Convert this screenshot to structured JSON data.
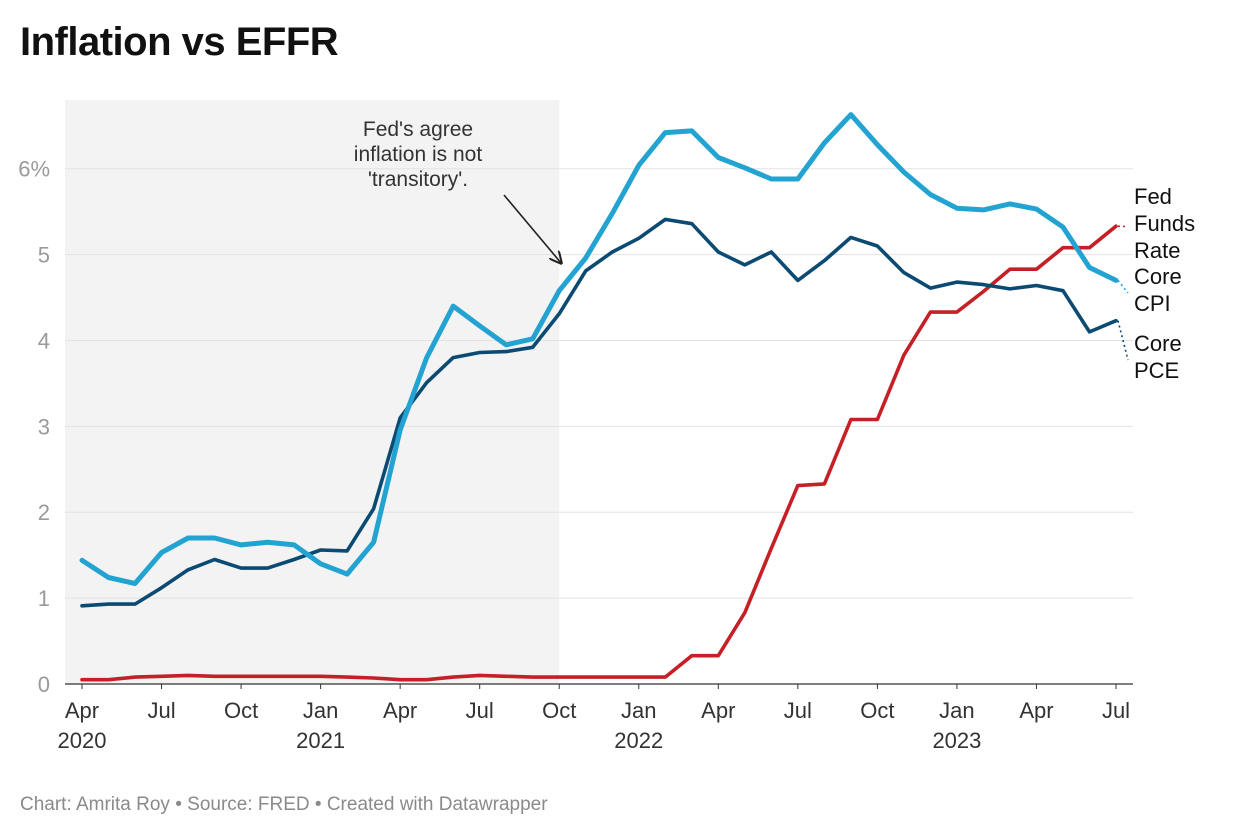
{
  "title": "Inflation vs EFFR",
  "footer": "Chart: Amrita Roy • Source: FRED • Created with Datawrapper",
  "chart_data": {
    "type": "line",
    "title": "Inflation vs EFFR",
    "x": [
      "2020-04",
      "2020-05",
      "2020-06",
      "2020-07",
      "2020-08",
      "2020-09",
      "2020-10",
      "2020-11",
      "2020-12",
      "2021-01",
      "2021-02",
      "2021-03",
      "2021-04",
      "2021-05",
      "2021-06",
      "2021-07",
      "2021-08",
      "2021-09",
      "2021-10",
      "2021-11",
      "2021-12",
      "2022-01",
      "2022-02",
      "2022-03",
      "2022-04",
      "2022-05",
      "2022-06",
      "2022-07",
      "2022-08",
      "2022-09",
      "2022-10",
      "2022-11",
      "2022-12",
      "2023-01",
      "2023-02",
      "2023-03",
      "2023-04",
      "2023-05",
      "2023-06",
      "2023-07"
    ],
    "series": [
      {
        "name": "Core CPI",
        "color": "#23a3d1",
        "values": [
          1.44,
          1.24,
          1.17,
          1.53,
          1.7,
          1.7,
          1.62,
          1.65,
          1.62,
          1.4,
          1.28,
          1.65,
          2.96,
          3.8,
          4.4,
          4.17,
          3.95,
          4.02,
          4.58,
          4.96,
          5.48,
          6.04,
          6.42,
          6.44,
          6.13,
          6.01,
          5.88,
          5.88,
          6.3,
          6.63,
          6.28,
          5.96,
          5.7,
          5.54,
          5.52,
          5.59,
          5.53,
          5.32,
          4.85,
          4.7
        ]
      },
      {
        "name": "Core PCE",
        "color": "#0b4a72",
        "values": [
          0.91,
          0.93,
          0.93,
          1.12,
          1.33,
          1.45,
          1.35,
          1.35,
          1.45,
          1.56,
          1.55,
          2.04,
          3.1,
          3.51,
          3.8,
          3.86,
          3.87,
          3.92,
          4.31,
          4.81,
          5.03,
          5.19,
          5.41,
          5.36,
          5.03,
          4.88,
          5.03,
          4.7,
          4.93,
          5.2,
          5.1,
          4.79,
          4.61,
          4.68,
          4.65,
          4.6,
          4.64,
          4.58,
          4.1,
          4.23
        ]
      },
      {
        "name": "Fed Funds Rate",
        "color": "#c62027",
        "values": [
          0.05,
          0.05,
          0.08,
          0.09,
          0.1,
          0.09,
          0.09,
          0.09,
          0.09,
          0.09,
          0.08,
          0.07,
          0.05,
          0.05,
          0.08,
          0.1,
          0.09,
          0.08,
          0.08,
          0.08,
          0.08,
          0.08,
          0.08,
          0.33,
          0.33,
          0.83,
          1.58,
          2.31,
          2.33,
          3.08,
          3.08,
          3.83,
          4.33,
          4.33,
          4.57,
          4.83,
          4.83,
          5.08,
          5.08,
          5.33
        ]
      }
    ],
    "series_labels": [
      {
        "series": "Fed Funds Rate",
        "lines": [
          "Fed",
          "Funds",
          "Rate"
        ]
      },
      {
        "series": "Core CPI",
        "lines": [
          "Core",
          "CPI"
        ]
      },
      {
        "series": "Core PCE",
        "lines": [
          "Core",
          "PCE"
        ]
      }
    ],
    "ylim": [
      0,
      6.8
    ],
    "yticks": [
      {
        "value": 0,
        "label": "0"
      },
      {
        "value": 1,
        "label": "1"
      },
      {
        "value": 2,
        "label": "2"
      },
      {
        "value": 3,
        "label": "3"
      },
      {
        "value": 4,
        "label": "4"
      },
      {
        "value": 5,
        "label": "5"
      },
      {
        "value": 6,
        "label": "6%"
      }
    ],
    "xticks": [
      {
        "value": "2020-04",
        "label": "Apr",
        "year": "2020"
      },
      {
        "value": "2020-07",
        "label": "Jul",
        "year": ""
      },
      {
        "value": "2020-10",
        "label": "Oct",
        "year": ""
      },
      {
        "value": "2021-01",
        "label": "Jan",
        "year": "2021"
      },
      {
        "value": "2021-04",
        "label": "Apr",
        "year": ""
      },
      {
        "value": "2021-07",
        "label": "Jul",
        "year": ""
      },
      {
        "value": "2021-10",
        "label": "Oct",
        "year": ""
      },
      {
        "value": "2022-01",
        "label": "Jan",
        "year": "2022"
      },
      {
        "value": "2022-04",
        "label": "Apr",
        "year": ""
      },
      {
        "value": "2022-07",
        "label": "Jul",
        "year": ""
      },
      {
        "value": "2022-10",
        "label": "Oct",
        "year": ""
      },
      {
        "value": "2023-01",
        "label": "Jan",
        "year": "2023"
      },
      {
        "value": "2023-04",
        "label": "Apr",
        "year": ""
      },
      {
        "value": "2023-07",
        "label": "Jul",
        "year": ""
      }
    ],
    "shaded_range": {
      "from": "2020-03",
      "to": "2021-10",
      "color": "#f3f3f3"
    },
    "annotation": {
      "lines": [
        "Fed's agree",
        "inflation is not",
        "'transitory'."
      ],
      "arrow_to": {
        "x": "2021-10",
        "y": 4.9
      }
    },
    "grid": true,
    "legend": "direct-labels-right"
  }
}
